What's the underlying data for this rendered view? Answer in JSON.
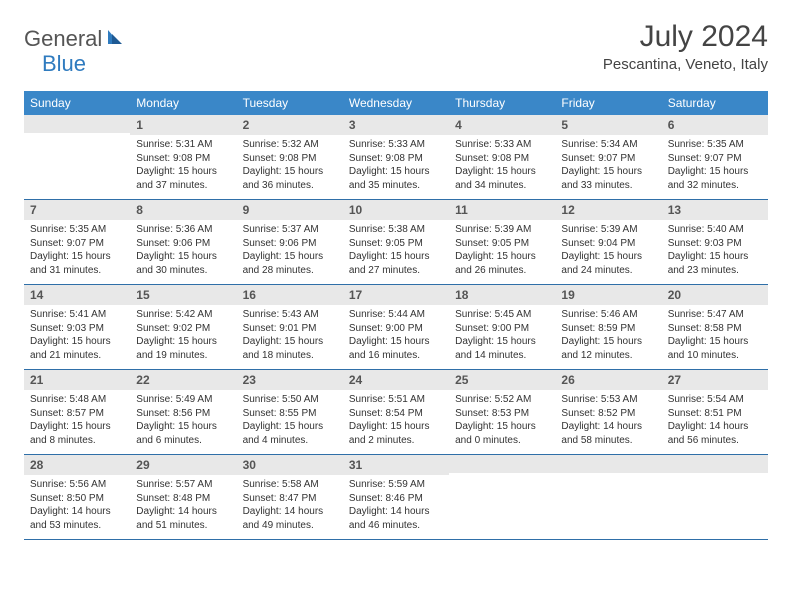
{
  "brand": {
    "general": "General",
    "blue": "Blue"
  },
  "title": "July 2024",
  "location": "Pescantina, Veneto, Italy",
  "colors": {
    "header_bg": "#3a87c8",
    "header_text": "#ffffff",
    "daynum_bg": "#e8e8e8",
    "border": "#2f6fa8",
    "logo_blue": "#2f7bbf"
  },
  "weekdays": [
    "Sunday",
    "Monday",
    "Tuesday",
    "Wednesday",
    "Thursday",
    "Friday",
    "Saturday"
  ],
  "weeks": [
    [
      {
        "day": "",
        "lines": [
          "",
          "",
          "",
          ""
        ]
      },
      {
        "day": "1",
        "lines": [
          "Sunrise: 5:31 AM",
          "Sunset: 9:08 PM",
          "Daylight: 15 hours",
          "and 37 minutes."
        ]
      },
      {
        "day": "2",
        "lines": [
          "Sunrise: 5:32 AM",
          "Sunset: 9:08 PM",
          "Daylight: 15 hours",
          "and 36 minutes."
        ]
      },
      {
        "day": "3",
        "lines": [
          "Sunrise: 5:33 AM",
          "Sunset: 9:08 PM",
          "Daylight: 15 hours",
          "and 35 minutes."
        ]
      },
      {
        "day": "4",
        "lines": [
          "Sunrise: 5:33 AM",
          "Sunset: 9:08 PM",
          "Daylight: 15 hours",
          "and 34 minutes."
        ]
      },
      {
        "day": "5",
        "lines": [
          "Sunrise: 5:34 AM",
          "Sunset: 9:07 PM",
          "Daylight: 15 hours",
          "and 33 minutes."
        ]
      },
      {
        "day": "6",
        "lines": [
          "Sunrise: 5:35 AM",
          "Sunset: 9:07 PM",
          "Daylight: 15 hours",
          "and 32 minutes."
        ]
      }
    ],
    [
      {
        "day": "7",
        "lines": [
          "Sunrise: 5:35 AM",
          "Sunset: 9:07 PM",
          "Daylight: 15 hours",
          "and 31 minutes."
        ]
      },
      {
        "day": "8",
        "lines": [
          "Sunrise: 5:36 AM",
          "Sunset: 9:06 PM",
          "Daylight: 15 hours",
          "and 30 minutes."
        ]
      },
      {
        "day": "9",
        "lines": [
          "Sunrise: 5:37 AM",
          "Sunset: 9:06 PM",
          "Daylight: 15 hours",
          "and 28 minutes."
        ]
      },
      {
        "day": "10",
        "lines": [
          "Sunrise: 5:38 AM",
          "Sunset: 9:05 PM",
          "Daylight: 15 hours",
          "and 27 minutes."
        ]
      },
      {
        "day": "11",
        "lines": [
          "Sunrise: 5:39 AM",
          "Sunset: 9:05 PM",
          "Daylight: 15 hours",
          "and 26 minutes."
        ]
      },
      {
        "day": "12",
        "lines": [
          "Sunrise: 5:39 AM",
          "Sunset: 9:04 PM",
          "Daylight: 15 hours",
          "and 24 minutes."
        ]
      },
      {
        "day": "13",
        "lines": [
          "Sunrise: 5:40 AM",
          "Sunset: 9:03 PM",
          "Daylight: 15 hours",
          "and 23 minutes."
        ]
      }
    ],
    [
      {
        "day": "14",
        "lines": [
          "Sunrise: 5:41 AM",
          "Sunset: 9:03 PM",
          "Daylight: 15 hours",
          "and 21 minutes."
        ]
      },
      {
        "day": "15",
        "lines": [
          "Sunrise: 5:42 AM",
          "Sunset: 9:02 PM",
          "Daylight: 15 hours",
          "and 19 minutes."
        ]
      },
      {
        "day": "16",
        "lines": [
          "Sunrise: 5:43 AM",
          "Sunset: 9:01 PM",
          "Daylight: 15 hours",
          "and 18 minutes."
        ]
      },
      {
        "day": "17",
        "lines": [
          "Sunrise: 5:44 AM",
          "Sunset: 9:00 PM",
          "Daylight: 15 hours",
          "and 16 minutes."
        ]
      },
      {
        "day": "18",
        "lines": [
          "Sunrise: 5:45 AM",
          "Sunset: 9:00 PM",
          "Daylight: 15 hours",
          "and 14 minutes."
        ]
      },
      {
        "day": "19",
        "lines": [
          "Sunrise: 5:46 AM",
          "Sunset: 8:59 PM",
          "Daylight: 15 hours",
          "and 12 minutes."
        ]
      },
      {
        "day": "20",
        "lines": [
          "Sunrise: 5:47 AM",
          "Sunset: 8:58 PM",
          "Daylight: 15 hours",
          "and 10 minutes."
        ]
      }
    ],
    [
      {
        "day": "21",
        "lines": [
          "Sunrise: 5:48 AM",
          "Sunset: 8:57 PM",
          "Daylight: 15 hours",
          "and 8 minutes."
        ]
      },
      {
        "day": "22",
        "lines": [
          "Sunrise: 5:49 AM",
          "Sunset: 8:56 PM",
          "Daylight: 15 hours",
          "and 6 minutes."
        ]
      },
      {
        "day": "23",
        "lines": [
          "Sunrise: 5:50 AM",
          "Sunset: 8:55 PM",
          "Daylight: 15 hours",
          "and 4 minutes."
        ]
      },
      {
        "day": "24",
        "lines": [
          "Sunrise: 5:51 AM",
          "Sunset: 8:54 PM",
          "Daylight: 15 hours",
          "and 2 minutes."
        ]
      },
      {
        "day": "25",
        "lines": [
          "Sunrise: 5:52 AM",
          "Sunset: 8:53 PM",
          "Daylight: 15 hours",
          "and 0 minutes."
        ]
      },
      {
        "day": "26",
        "lines": [
          "Sunrise: 5:53 AM",
          "Sunset: 8:52 PM",
          "Daylight: 14 hours",
          "and 58 minutes."
        ]
      },
      {
        "day": "27",
        "lines": [
          "Sunrise: 5:54 AM",
          "Sunset: 8:51 PM",
          "Daylight: 14 hours",
          "and 56 minutes."
        ]
      }
    ],
    [
      {
        "day": "28",
        "lines": [
          "Sunrise: 5:56 AM",
          "Sunset: 8:50 PM",
          "Daylight: 14 hours",
          "and 53 minutes."
        ]
      },
      {
        "day": "29",
        "lines": [
          "Sunrise: 5:57 AM",
          "Sunset: 8:48 PM",
          "Daylight: 14 hours",
          "and 51 minutes."
        ]
      },
      {
        "day": "30",
        "lines": [
          "Sunrise: 5:58 AM",
          "Sunset: 8:47 PM",
          "Daylight: 14 hours",
          "and 49 minutes."
        ]
      },
      {
        "day": "31",
        "lines": [
          "Sunrise: 5:59 AM",
          "Sunset: 8:46 PM",
          "Daylight: 14 hours",
          "and 46 minutes."
        ]
      },
      {
        "day": "",
        "lines": [
          "",
          "",
          "",
          ""
        ]
      },
      {
        "day": "",
        "lines": [
          "",
          "",
          "",
          ""
        ]
      },
      {
        "day": "",
        "lines": [
          "",
          "",
          "",
          ""
        ]
      }
    ]
  ]
}
